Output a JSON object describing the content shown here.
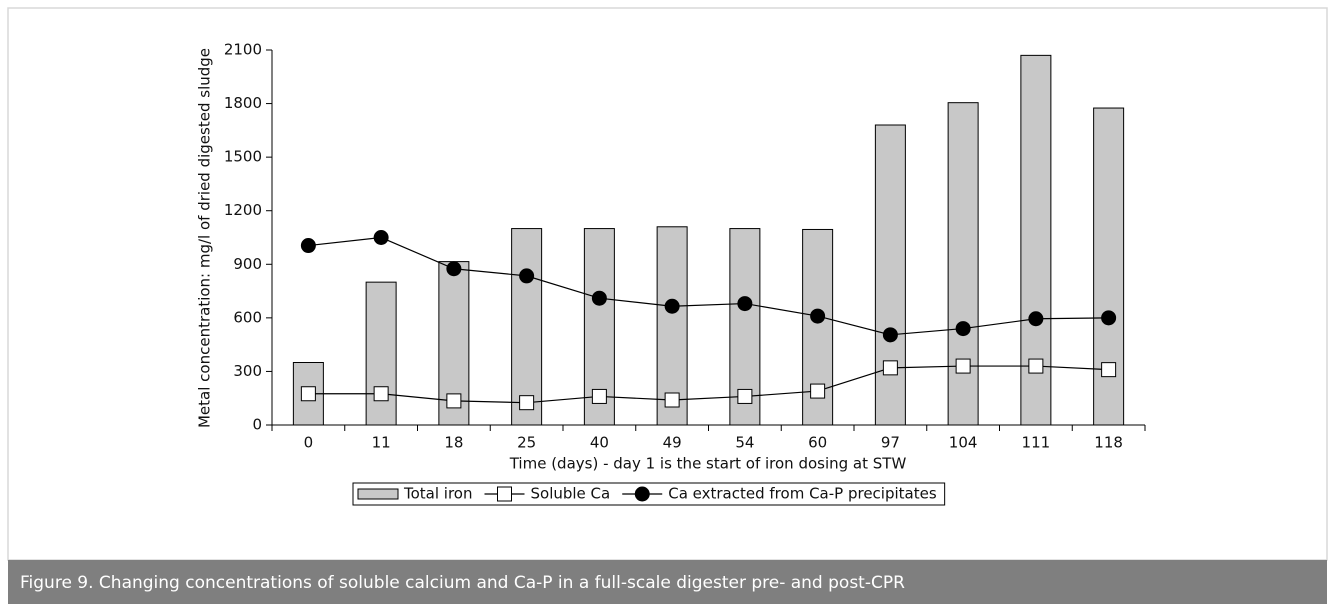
{
  "chart_data": {
    "type": "bar",
    "caption": "Figure 9. Changing concentrations of soluble calcium and Ca-P in a full-scale digester pre- and post-CPR",
    "xlabel": "Time (days) - day 1 is the start of iron dosing at STW",
    "ylabel": "Metal concentration: mg/l of dried digested sludge",
    "categories": [
      "0",
      "11",
      "18",
      "25",
      "40",
      "49",
      "54",
      "60",
      "97",
      "104",
      "111",
      "118"
    ],
    "series": [
      {
        "name": "Total iron",
        "type": "bar",
        "color": "#c8c8c8",
        "values": [
          350,
          800,
          915,
          1100,
          1100,
          1110,
          1100,
          1095,
          1680,
          1805,
          2070,
          1775
        ]
      },
      {
        "name": "Soluble Ca",
        "type": "line",
        "marker": "square",
        "color": "#ffffff",
        "values": [
          175,
          175,
          135,
          125,
          160,
          140,
          160,
          190,
          320,
          330,
          330,
          310
        ]
      },
      {
        "name": "Ca extracted from Ca-P precipitates",
        "type": "line",
        "marker": "circle",
        "color": "#000000",
        "values": [
          1005,
          1050,
          875,
          835,
          710,
          665,
          680,
          610,
          505,
          540,
          595,
          600
        ]
      }
    ],
    "ylim": [
      0,
      2100
    ],
    "yticks": [
      0,
      300,
      600,
      900,
      1200,
      1500,
      1800,
      2100
    ],
    "legend": "bottom"
  }
}
